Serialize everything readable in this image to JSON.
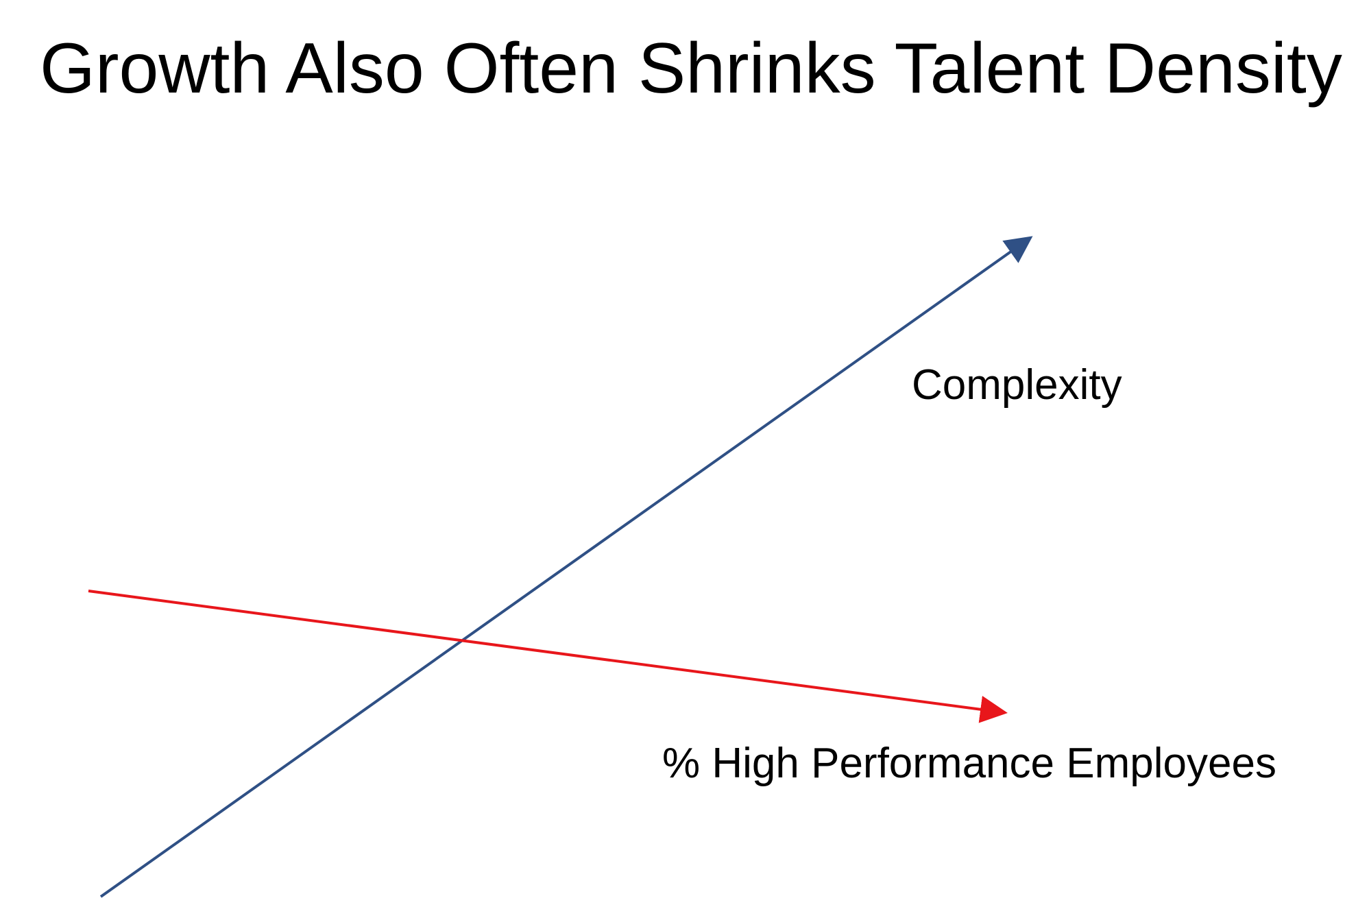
{
  "slide": {
    "title": "Growth Also Often Shrinks Talent Density"
  },
  "diagram": {
    "rising_line": {
      "label": "Complexity",
      "color": "#2f5085",
      "trend": "increasing"
    },
    "falling_line": {
      "label": "% High Performance Employees",
      "color": "#e8161b",
      "trend": "decreasing"
    }
  }
}
